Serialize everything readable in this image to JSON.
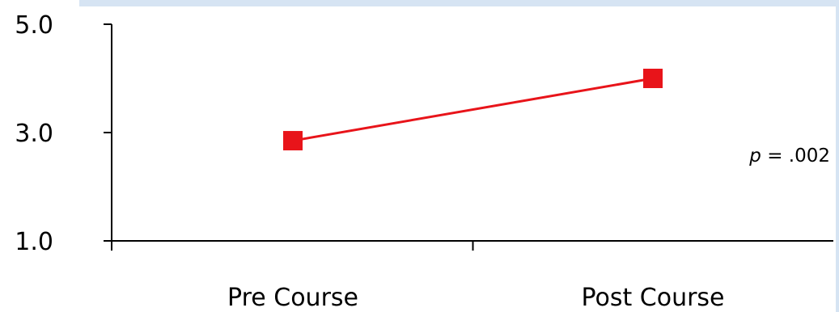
{
  "chart_data": {
    "type": "line",
    "categories": [
      "Pre Course",
      "Post Course"
    ],
    "series": [
      {
        "values": [
          2.85,
          4.0
        ]
      }
    ],
    "ylim": [
      1.0,
      5.0
    ],
    "yticks": [
      "5.0",
      "3.0",
      "1.0"
    ],
    "title": "",
    "xlabel": "",
    "ylabel": "",
    "grid": false,
    "annotation": {
      "italic": "p",
      "text": " = .002"
    },
    "colors": {
      "series": "#e8141a",
      "axis": "#000000",
      "frame": "#d6e4f3"
    }
  }
}
